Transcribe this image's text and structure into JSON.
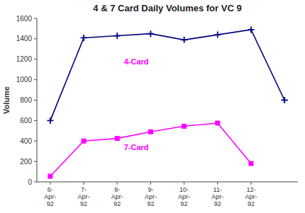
{
  "chart_data": {
    "type": "line",
    "title": "4 & 7 Card Daily Volumes for VC 9",
    "y_label": "Volume",
    "categories": [
      "6-\nApr-\n92",
      "7-\nApr-\n92",
      "8-\nApr-\n92",
      "9-\nApr-\n92",
      "10-\nApr-\n92",
      "11-\nApr-\n92",
      "12-\nApr-\n92",
      null
    ],
    "series": [
      {
        "color": "#000080",
        "marker": "plus",
        "values": [
          600,
          1410,
          1430,
          1450,
          1390,
          1440,
          1490,
          800
        ]
      },
      {
        "color": "#ff00ff",
        "marker": "square",
        "values": [
          55,
          400,
          425,
          490,
          545,
          575,
          180,
          null
        ]
      }
    ],
    "annotations": [
      {
        "text": "4-Card",
        "x": 2.2,
        "y": 1150,
        "color": "#ff00ff"
      },
      {
        "text": "7-Card",
        "x": 2.2,
        "y": 310,
        "color": "#ff00ff"
      }
    ],
    "ylim": [
      0,
      1600
    ],
    "yticks": [
      0,
      200,
      400,
      600,
      800,
      1000,
      1200,
      1400,
      1600
    ],
    "grid": false
  }
}
